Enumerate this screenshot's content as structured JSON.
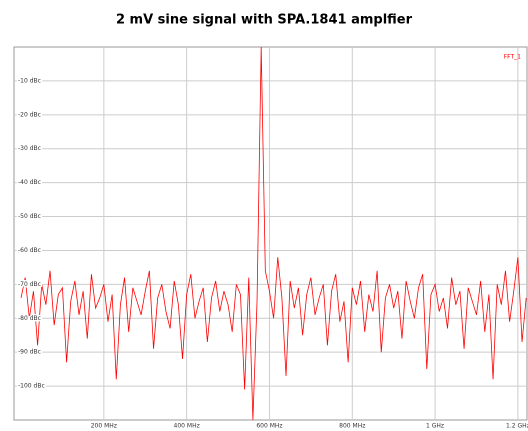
{
  "chart_data": {
    "type": "line",
    "title": "2 mV sine signal with SPA.1841 amplfier",
    "x": [
      0,
      10,
      20,
      30,
      40,
      50,
      60,
      70,
      80,
      90,
      100,
      110,
      120,
      130,
      140,
      150,
      160,
      170,
      180,
      190,
      200,
      210,
      220,
      230,
      240,
      250,
      260,
      270,
      280,
      290,
      300,
      310,
      320,
      330,
      340,
      350,
      360,
      370,
      380,
      390,
      400,
      410,
      420,
      430,
      440,
      450,
      460,
      470,
      480,
      490,
      500,
      510,
      520,
      530,
      540,
      550,
      560,
      570,
      580,
      590,
      600,
      610,
      620,
      630,
      640,
      650,
      660,
      670,
      680,
      690,
      700,
      710,
      720,
      730,
      740,
      750,
      760,
      770,
      780,
      790,
      800,
      810,
      820,
      830,
      840,
      850,
      860,
      870,
      880,
      890,
      900,
      910,
      920,
      930,
      940,
      950,
      960,
      970,
      980,
      990,
      1000,
      1010,
      1020,
      1030,
      1040,
      1050,
      1060,
      1070,
      1080,
      1090,
      1100,
      1110,
      1120,
      1130,
      1140,
      1150,
      1160,
      1170,
      1180,
      1190,
      1200,
      1210,
      1220
    ],
    "series": [
      {
        "name": "FFT_1",
        "color": "#ff0000",
        "values": [
          -74,
          -68,
          -80,
          -72,
          -88,
          -70,
          -76,
          -66,
          -82,
          -73,
          -71,
          -93,
          -75,
          -69,
          -79,
          -72,
          -86,
          -67,
          -77,
          -74,
          -70,
          -81,
          -73,
          -98,
          -76,
          -68,
          -84,
          -71,
          -75,
          -79,
          -72,
          -66,
          -89,
          -74,
          -70,
          -78,
          -83,
          -69,
          -76,
          -92,
          -73,
          -67,
          -80,
          -75,
          -71,
          -87,
          -74,
          -69,
          -78,
          -72,
          -76,
          -84,
          -70,
          -73,
          -101,
          -68,
          -110,
          -75,
          0,
          -66,
          -72,
          -80,
          -62,
          -74,
          -97,
          -69,
          -77,
          -71,
          -85,
          -73,
          -68,
          -79,
          -74,
          -70,
          -88,
          -72,
          -67,
          -81,
          -75,
          -93,
          -71,
          -76,
          -69,
          -84,
          -73,
          -78,
          -66,
          -90,
          -74,
          -70,
          -77,
          -72,
          -86,
          -69,
          -75,
          -80,
          -71,
          -67,
          -95,
          -73,
          -70,
          -78,
          -74,
          -83,
          -68,
          -76,
          -72,
          -89,
          -71,
          -75,
          -79,
          -69,
          -84,
          -73,
          -98,
          -70,
          -76,
          -66,
          -81,
          -72,
          -62,
          -87,
          -74
        ]
      }
    ],
    "xlim": [
      -17,
      1222
    ],
    "xticks": [
      {
        "value": 200,
        "label": "200 MHz"
      },
      {
        "value": 400,
        "label": "400 MHz"
      },
      {
        "value": 600,
        "label": "600 MHz"
      },
      {
        "value": 800,
        "label": "800 MHz"
      },
      {
        "value": 1000,
        "label": "1 GHz"
      },
      {
        "value": 1200,
        "label": "1.2 GHz"
      }
    ],
    "ylim": [
      -110,
      0
    ],
    "yticks": [
      {
        "value": -10,
        "label": "-10 dBc"
      },
      {
        "value": -20,
        "label": "-20 dBc"
      },
      {
        "value": -30,
        "label": "-30 dBc"
      },
      {
        "value": -40,
        "label": "-40 dBc"
      },
      {
        "value": -50,
        "label": "-50 dBc"
      },
      {
        "value": -60,
        "label": "-60 dBc"
      },
      {
        "value": -70,
        "label": "-70 dBc"
      },
      {
        "value": -80,
        "label": "-80 dBc"
      },
      {
        "value": -90,
        "label": "-90 dBc"
      },
      {
        "value": -100,
        "label": "-100 dBc"
      }
    ],
    "grid": true,
    "legend": "upper right"
  }
}
